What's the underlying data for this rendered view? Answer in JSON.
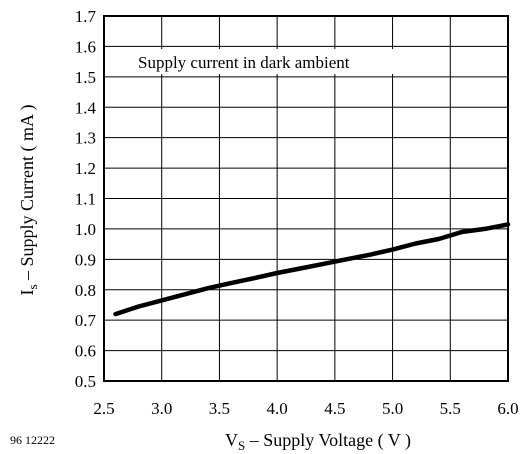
{
  "figure_id": "96 12222",
  "chart_data": {
    "type": "line",
    "title": "",
    "annotation": "Supply current in dark ambient",
    "xlabel": {
      "main": "V",
      "sub": "S",
      "rest": " – Supply Voltage ( V )"
    },
    "ylabel": {
      "main": "I",
      "sub": "s",
      "rest": " – Supply Current ( mA )"
    },
    "xlim": [
      2.5,
      6.0
    ],
    "ylim": [
      0.5,
      1.7
    ],
    "xticks": [
      2.5,
      3.0,
      3.5,
      4.0,
      4.5,
      5.0,
      5.5,
      6.0
    ],
    "xtick_labels": [
      "2.5",
      "3.0",
      "3.5",
      "4.0",
      "4.5",
      "5.0",
      "5.5",
      "6.0"
    ],
    "yticks": [
      0.5,
      0.6,
      0.7,
      0.8,
      0.9,
      1.0,
      1.1,
      1.2,
      1.3,
      1.4,
      1.5,
      1.6,
      1.7
    ],
    "ytick_labels": [
      "0.5",
      "0.6",
      "0.7",
      "0.8",
      "0.9",
      "1.0",
      "1.1",
      "1.2",
      "1.3",
      "1.4",
      "1.5",
      "1.6",
      "1.7"
    ],
    "grid": true,
    "series": [
      {
        "x": [
          2.6,
          2.8,
          3.0,
          3.2,
          3.4,
          3.6,
          3.8,
          4.0,
          4.2,
          4.4,
          4.6,
          4.8,
          5.0,
          5.2,
          5.4,
          5.6,
          5.8,
          6.0
        ],
        "y": [
          0.72,
          0.745,
          0.765,
          0.785,
          0.805,
          0.822,
          0.838,
          0.855,
          0.87,
          0.885,
          0.9,
          0.915,
          0.932,
          0.952,
          0.967,
          0.99,
          1.0,
          1.015
        ]
      }
    ]
  }
}
